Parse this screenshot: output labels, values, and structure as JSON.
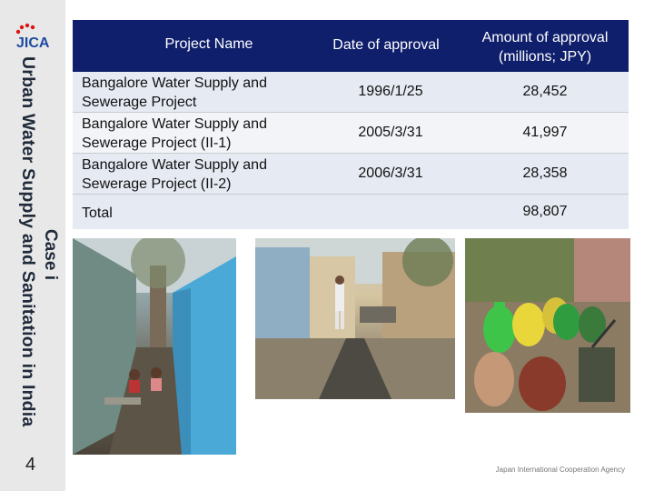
{
  "sidebar": {
    "title": "Urban Water Supply and Sanitation in India",
    "case": "Case i",
    "page_number": "4"
  },
  "table": {
    "headers": {
      "project_name": "Project Name",
      "date": "Date of approval",
      "amount_line1": "Amount of approval",
      "amount_line2": "(millions; JPY)"
    },
    "rows": [
      {
        "name": "Bangalore Water Supply and Sewerage Project",
        "date": "1996/1/25",
        "amount": "28,452"
      },
      {
        "name": "Bangalore Water Supply and Sewerage Project (II-1)",
        "date": "2005/3/31",
        "amount": "41,997"
      },
      {
        "name": "Bangalore Water Supply and Sewerage Project (II-2)",
        "date": "2006/3/31",
        "amount": "28,358"
      }
    ],
    "total": {
      "label": "Total",
      "amount": "98,807"
    }
  },
  "logo": {
    "text": "JICA"
  },
  "footer": {
    "text": "Japan International Cooperation Agency"
  },
  "colors": {
    "header_bg": "#0f1f6b",
    "row_odd": "#e6eaf3",
    "row_even": "#f2f4f8",
    "logo_blue": "#1d4aa0",
    "logo_red": "#d11"
  }
}
